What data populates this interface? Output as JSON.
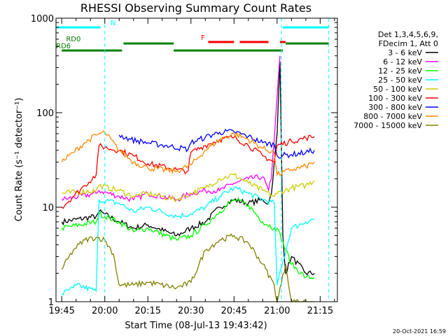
{
  "chart_data": {
    "type": "line",
    "title": "RHESSI Observing Summary Count Rates",
    "xlabel": "Start Time (08-Jul-13 19:43:42)",
    "ylabel": "Count Rate (s⁻¹ detector⁻¹)",
    "yscale": "log",
    "xlim_minutes": [
      -2,
      96
    ],
    "ylim": [
      1,
      1000
    ],
    "x_ticks": [
      {
        "minute": 0,
        "label": "19:45"
      },
      {
        "minute": 15,
        "label": "20:00"
      },
      {
        "minute": 30,
        "label": "20:15"
      },
      {
        "minute": 45,
        "label": "20:30"
      },
      {
        "minute": 60,
        "label": "20:45"
      },
      {
        "minute": 75,
        "label": "21:00"
      },
      {
        "minute": 90,
        "label": "21:15"
      }
    ],
    "y_ticks": [
      {
        "value": 1,
        "label": "1"
      },
      {
        "value": 10,
        "label": "10"
      },
      {
        "value": 100,
        "label": "100"
      },
      {
        "value": 1000,
        "label": "1000"
      }
    ],
    "grid": false,
    "legend_position": "top-right",
    "legend_header": [
      "Det 1,3,4,5,6,9,",
      "FDecim 1, Att 0"
    ],
    "series": [
      {
        "name": "3 - 6 keV",
        "color": "#000000",
        "x": [
          0,
          12,
          13,
          20,
          25,
          30,
          40,
          45,
          50,
          55,
          60,
          65,
          70,
          72,
          73,
          75,
          76,
          77,
          78,
          80,
          85,
          88
        ],
        "values": [
          7,
          8,
          9,
          7,
          6,
          6.5,
          5,
          6,
          7,
          10,
          12,
          11,
          12,
          11,
          14,
          60,
          350,
          5,
          2,
          3,
          2,
          2
        ]
      },
      {
        "name": "6 - 12 keV",
        "color": "#ff00ff",
        "x": [
          0,
          12,
          13,
          20,
          25,
          30,
          40,
          45,
          50,
          55,
          60,
          65,
          70,
          72,
          73,
          75,
          76,
          77
        ],
        "values": [
          12,
          14,
          15,
          13,
          12,
          14,
          12,
          14,
          15,
          15,
          18,
          20,
          21,
          15,
          20,
          150,
          400,
          null
        ]
      },
      {
        "name": "12 - 25 keV",
        "color": "#00ff00",
        "x": [
          0,
          12,
          13,
          20,
          25,
          30,
          40,
          45,
          50,
          55,
          60,
          65,
          70,
          74,
          75,
          80,
          85,
          88
        ],
        "values": [
          6,
          7,
          8.5,
          7,
          5.5,
          6,
          4.5,
          5,
          6.5,
          9,
          12,
          10.5,
          7,
          6,
          6,
          2.5,
          1.8,
          1.8
        ]
      },
      {
        "name": "25 - 50 keV",
        "color": "#00ffff",
        "x": [
          0,
          4,
          5,
          12,
          13,
          20,
          25,
          30,
          40,
          45,
          50,
          55,
          60,
          65,
          70,
          74,
          75,
          80,
          85,
          88
        ],
        "values": [
          1.2,
          1.4,
          1.5,
          1.3,
          12,
          11,
          9,
          10,
          8,
          8.5,
          10,
          13,
          16,
          14,
          12,
          11,
          1.5,
          6,
          7,
          7.5
        ]
      },
      {
        "name": "50 - 100 keV",
        "color": "#cccc00",
        "x": [
          0,
          12,
          13,
          20,
          25,
          30,
          40,
          45,
          50,
          55,
          60,
          65,
          70,
          74,
          75,
          80,
          85,
          88
        ],
        "values": [
          14,
          15,
          17,
          15,
          13,
          14,
          12,
          14,
          16,
          20,
          22,
          18,
          15,
          13,
          14,
          16,
          17,
          19
        ]
      },
      {
        "name": "100 - 300 keV",
        "color": "#ff0000",
        "x": [
          0,
          4,
          8,
          12,
          13,
          16,
          20,
          25,
          30,
          40,
          44,
          45,
          50,
          55,
          60,
          65,
          70,
          74,
          75,
          80,
          85,
          88
        ],
        "values": [
          10,
          13,
          17,
          22,
          45,
          42,
          40,
          35,
          29,
          25,
          24,
          38,
          45,
          52,
          55,
          45,
          35,
          30,
          45,
          50,
          54,
          56
        ]
      },
      {
        "name": "300 - 800 keV",
        "color": "#0000ff",
        "x": [
          20,
          24,
          30,
          36,
          44,
          45,
          50,
          55,
          60,
          65,
          70,
          74,
          75,
          80,
          85,
          88
        ],
        "values": [
          58,
          52,
          48,
          45,
          41,
          48,
          55,
          62,
          63,
          56,
          48,
          46,
          35,
          36,
          38,
          40
        ]
      },
      {
        "name": "800 - 7000 keV",
        "color": "#ff8800",
        "x": [
          0,
          4,
          8,
          12,
          15,
          20,
          25,
          30,
          40,
          45,
          50,
          55,
          60,
          65,
          70,
          74,
          75,
          80,
          85,
          88
        ],
        "values": [
          30,
          38,
          48,
          58,
          62,
          40,
          30,
          26,
          24,
          28,
          40,
          52,
          60,
          52,
          42,
          38,
          22,
          25,
          27,
          30
        ]
      },
      {
        "name": "7000 - 15000 keV",
        "color": "#808000",
        "x": [
          0,
          4,
          8,
          12,
          15,
          18,
          20,
          25,
          30,
          40,
          45,
          50,
          55,
          60,
          65,
          70,
          74,
          75,
          78,
          80,
          85,
          88
        ],
        "values": [
          2.2,
          3.5,
          4.5,
          4.8,
          4.5,
          3.2,
          1.5,
          1.5,
          1.6,
          1.4,
          1.6,
          3.5,
          4.5,
          5,
          4.2,
          2.5,
          1.5,
          1,
          2.5,
          1,
          1,
          1
        ]
      }
    ],
    "state_bars": [
      {
        "label": "N",
        "color": "#00ffff",
        "y": 800,
        "segments": [
          [
            -2,
            13.5
          ],
          [
            77,
            93
          ]
        ],
        "label_x": 17
      },
      {
        "label": "F",
        "color": "#ff0000",
        "y": 560,
        "segments": [
          [
            51,
            60
          ],
          [
            62,
            72
          ],
          [
            76,
            78
          ]
        ],
        "label_x": 48.5
      },
      {
        "label": "RD0",
        "color": "#008000",
        "y": 540,
        "segments": [
          [
            21.5,
            39
          ],
          [
            78,
            93
          ]
        ],
        "label_x": 1.5
      },
      {
        "label": "RD6",
        "color": "#008000",
        "y": 455,
        "segments": [
          [
            0,
            21
          ],
          [
            39,
            77
          ]
        ],
        "label_x": -2
      }
    ],
    "dashed_markers": [
      {
        "minute": 15,
        "color": "#00ffff"
      },
      {
        "minute": 76.5,
        "color": "#00ffff"
      },
      {
        "minute": 93,
        "color": "#00ffff"
      }
    ]
  },
  "footer_timestamp": "20-Oct-2021 16:59"
}
